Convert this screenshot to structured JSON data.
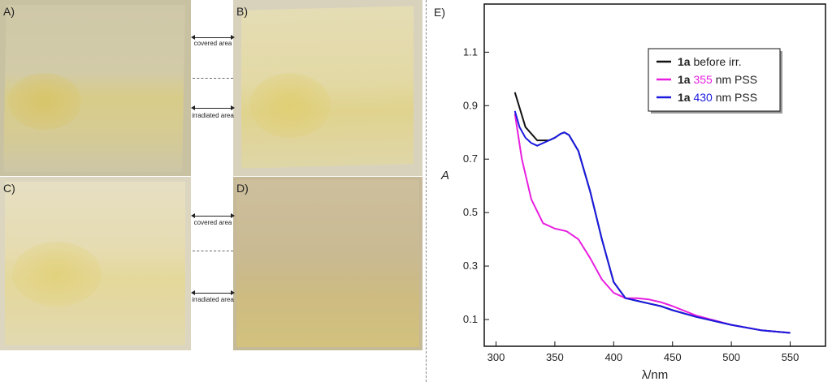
{
  "photos": {
    "panel_a": {
      "label": "A)"
    },
    "panel_b": {
      "label": "B)"
    },
    "panel_c": {
      "label": "C)"
    },
    "panel_d": {
      "label": "D)"
    }
  },
  "annotations": {
    "covered_top": "covered area",
    "irradiated_top": "irradiated area",
    "covered_bottom": "covered area",
    "irradiated_bottom": "irradiated area"
  },
  "chart_data": {
    "type": "line",
    "panel_label": "E)",
    "xlabel": "λ/nm",
    "ylabel": "A",
    "xlim": [
      290,
      580
    ],
    "ylim": [
      0.0,
      1.28
    ],
    "xticks": [
      300,
      350,
      400,
      450,
      500,
      550
    ],
    "yticks": [
      0.1,
      0.3,
      0.5,
      0.7,
      0.9,
      1.1
    ],
    "legend_position": "top-right",
    "series": [
      {
        "name": "1a before irr.",
        "name_bold": "1a",
        "name_colored": "",
        "name_rest": "before irr.",
        "color": "#111111",
        "x": [
          316,
          325,
          335,
          345,
          350,
          355,
          358,
          362,
          370,
          380,
          390,
          400,
          410,
          420,
          430,
          440,
          450,
          470,
          500,
          525,
          550
        ],
        "y": [
          0.95,
          0.82,
          0.77,
          0.77,
          0.78,
          0.795,
          0.8,
          0.79,
          0.73,
          0.58,
          0.4,
          0.24,
          0.18,
          0.17,
          0.16,
          0.15,
          0.135,
          0.11,
          0.08,
          0.06,
          0.05
        ]
      },
      {
        "name": "1a 355 nm PSS",
        "name_bold": "1a",
        "name_colored": "355",
        "name_rest": "nm PSS",
        "color": "#e81ee0",
        "x": [
          316,
          322,
          330,
          340,
          350,
          360,
          370,
          380,
          390,
          400,
          410,
          420,
          430,
          440,
          450,
          470,
          500,
          525,
          550
        ],
        "y": [
          0.87,
          0.7,
          0.55,
          0.46,
          0.44,
          0.43,
          0.4,
          0.33,
          0.25,
          0.2,
          0.18,
          0.18,
          0.175,
          0.165,
          0.15,
          0.115,
          0.08,
          0.06,
          0.05
        ]
      },
      {
        "name": "1a 430 nm PSS",
        "name_bold": "1a",
        "name_colored": "430",
        "name_rest": "nm PSS",
        "color": "#1a1ae0",
        "x": [
          316,
          320,
          325,
          330,
          335,
          345,
          350,
          355,
          358,
          362,
          370,
          380,
          390,
          400,
          410,
          420,
          430,
          440,
          450,
          470,
          500,
          525,
          550
        ],
        "y": [
          0.88,
          0.82,
          0.78,
          0.76,
          0.75,
          0.77,
          0.78,
          0.795,
          0.8,
          0.79,
          0.73,
          0.58,
          0.4,
          0.24,
          0.18,
          0.17,
          0.16,
          0.15,
          0.135,
          0.11,
          0.08,
          0.06,
          0.05
        ]
      }
    ]
  }
}
